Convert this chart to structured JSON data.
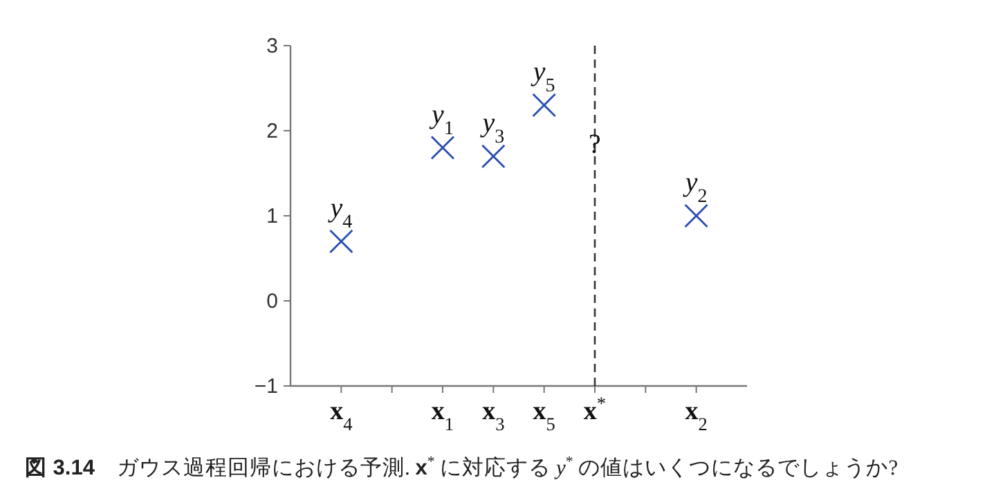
{
  "chart_data": {
    "type": "scatter",
    "marker": "cross",
    "color": "#2a4db0",
    "categories": [
      "**x**$_{4}$",
      null,
      "**x**$_{1}$",
      "**x**$_{3}$",
      "**x**$_{5}$",
      "**x**$^{*}$",
      null,
      "**x**$_{2}$"
    ],
    "values": [
      0.7,
      null,
      1.8,
      1.7,
      2.3,
      null,
      null,
      1.0
    ],
    "ylim": [
      -1,
      3
    ],
    "yticks": [
      -1,
      0,
      1,
      2,
      3
    ],
    "ref_lines": [
      {
        "axis": "x",
        "value": "**x**$^{*}$",
        "line_style": "dashed",
        "color": "#333333"
      }
    ],
    "annotations": [
      {
        "text": "*y*$_{1}$",
        "x": "**x**$_{1}$",
        "y": 1.8
      },
      {
        "text": "*y*$_{2}$",
        "x": "**x**$_{2}$",
        "y": 1.0
      },
      {
        "text": "*y*$_{3}$",
        "x": "**x**$_{3}$",
        "y": 1.7
      },
      {
        "text": "*y*$_{4}$",
        "x": "**x**$_{4}$",
        "y": 0.7
      },
      {
        "text": "*y*$_{5}$",
        "x": "**x**$_{5}$",
        "y": 2.3
      },
      {
        "text": "?",
        "x": "**x**$^{*}$",
        "y": 1.45
      },
      "**図 3.14**　ガウス過程回帰における予測.  **x**$^{*}$ に対応する *y*$^{*}$ の値はいくつになるでしょうか?"
    ]
  }
}
